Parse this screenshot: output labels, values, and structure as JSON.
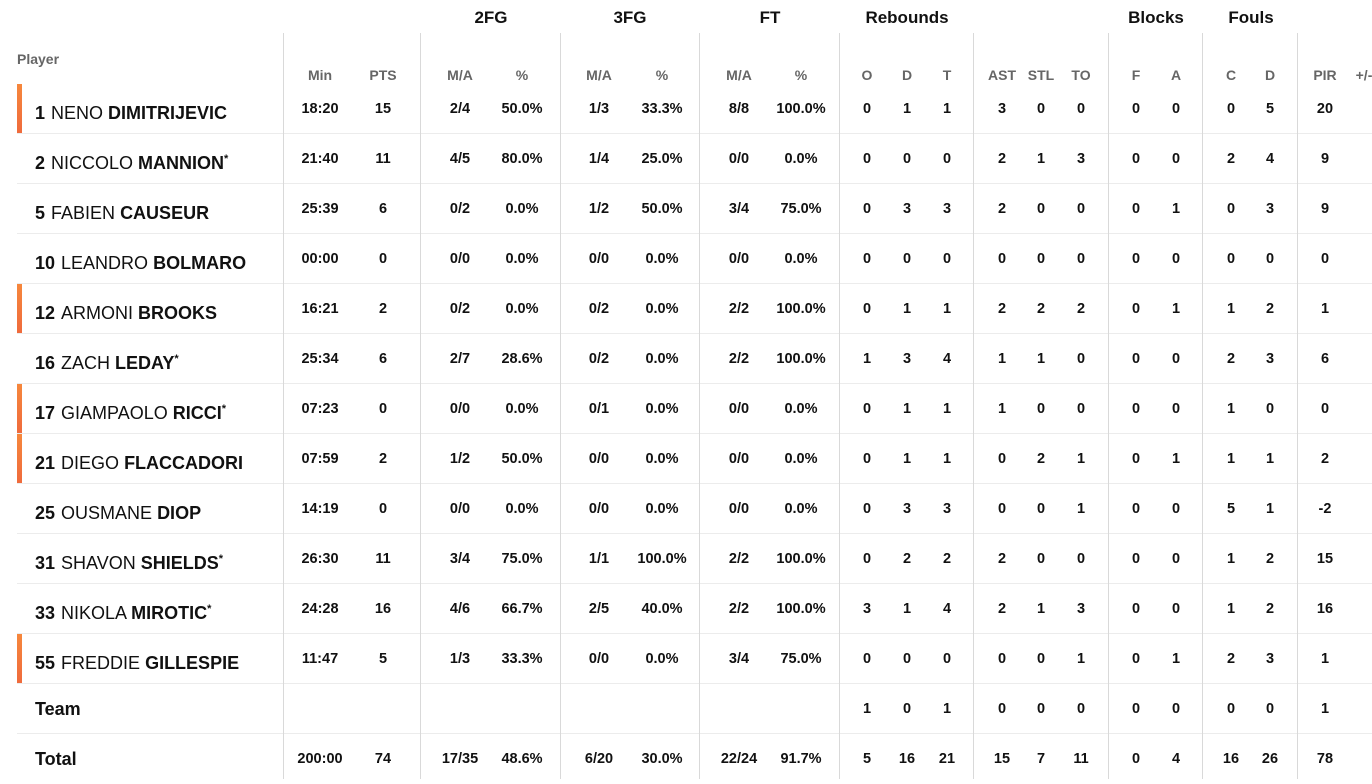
{
  "groups": {
    "fg2": "2FG",
    "fg3": "3FG",
    "ft": "FT",
    "reb": "Rebounds",
    "blk": "Blocks",
    "fouls": "Fouls"
  },
  "columns": {
    "player": "Player",
    "min": "Min",
    "pts": "PTS",
    "fg2_ma": "M/A",
    "fg2_pct": "%",
    "fg3_ma": "M/A",
    "fg3_pct": "%",
    "ft_ma": "M/A",
    "ft_pct": "%",
    "reb_o": "O",
    "reb_d": "D",
    "reb_t": "T",
    "ast": "AST",
    "stl": "STL",
    "to": "TO",
    "blk_f": "F",
    "blk_a": "A",
    "foul_c": "C",
    "foul_d": "D",
    "pir": "PIR",
    "plusminus": "+/-"
  },
  "highlight_color": "#f37b3c",
  "players": [
    {
      "number": "1",
      "first": "NENO",
      "last": "DIMITRIJEVIC",
      "starter": "",
      "sub": true,
      "min": "18:20",
      "pts": "15",
      "fg2_ma": "2/4",
      "fg2_pct": "50.0%",
      "fg3_ma": "1/3",
      "fg3_pct": "33.3%",
      "ft_ma": "8/8",
      "ft_pct": "100.0%",
      "reb_o": "0",
      "reb_d": "1",
      "reb_t": "1",
      "ast": "3",
      "stl": "0",
      "to": "0",
      "blk_f": "0",
      "blk_a": "0",
      "foul_c": "0",
      "foul_d": "5",
      "pir": "20"
    },
    {
      "number": "2",
      "first": "NICCOLO",
      "last": "MANNION",
      "starter": "*",
      "sub": false,
      "min": "21:40",
      "pts": "11",
      "fg2_ma": "4/5",
      "fg2_pct": "80.0%",
      "fg3_ma": "1/4",
      "fg3_pct": "25.0%",
      "ft_ma": "0/0",
      "ft_pct": "0.0%",
      "reb_o": "0",
      "reb_d": "0",
      "reb_t": "0",
      "ast": "2",
      "stl": "1",
      "to": "3",
      "blk_f": "0",
      "blk_a": "0",
      "foul_c": "2",
      "foul_d": "4",
      "pir": "9"
    },
    {
      "number": "5",
      "first": "FABIEN",
      "last": "CAUSEUR",
      "starter": "",
      "sub": false,
      "min": "25:39",
      "pts": "6",
      "fg2_ma": "0/2",
      "fg2_pct": "0.0%",
      "fg3_ma": "1/2",
      "fg3_pct": "50.0%",
      "ft_ma": "3/4",
      "ft_pct": "75.0%",
      "reb_o": "0",
      "reb_d": "3",
      "reb_t": "3",
      "ast": "2",
      "stl": "0",
      "to": "0",
      "blk_f": "0",
      "blk_a": "1",
      "foul_c": "0",
      "foul_d": "3",
      "pir": "9"
    },
    {
      "number": "10",
      "first": "LEANDRO",
      "last": "BOLMARO",
      "starter": "",
      "sub": false,
      "min": "00:00",
      "pts": "0",
      "fg2_ma": "0/0",
      "fg2_pct": "0.0%",
      "fg3_ma": "0/0",
      "fg3_pct": "0.0%",
      "ft_ma": "0/0",
      "ft_pct": "0.0%",
      "reb_o": "0",
      "reb_d": "0",
      "reb_t": "0",
      "ast": "0",
      "stl": "0",
      "to": "0",
      "blk_f": "0",
      "blk_a": "0",
      "foul_c": "0",
      "foul_d": "0",
      "pir": "0"
    },
    {
      "number": "12",
      "first": "ARMONI",
      "last": "BROOKS",
      "starter": "",
      "sub": true,
      "min": "16:21",
      "pts": "2",
      "fg2_ma": "0/2",
      "fg2_pct": "0.0%",
      "fg3_ma": "0/2",
      "fg3_pct": "0.0%",
      "ft_ma": "2/2",
      "ft_pct": "100.0%",
      "reb_o": "0",
      "reb_d": "1",
      "reb_t": "1",
      "ast": "2",
      "stl": "2",
      "to": "2",
      "blk_f": "0",
      "blk_a": "1",
      "foul_c": "1",
      "foul_d": "2",
      "pir": "1"
    },
    {
      "number": "16",
      "first": "ZACH",
      "last": "LEDAY",
      "starter": "*",
      "sub": false,
      "min": "25:34",
      "pts": "6",
      "fg2_ma": "2/7",
      "fg2_pct": "28.6%",
      "fg3_ma": "0/2",
      "fg3_pct": "0.0%",
      "ft_ma": "2/2",
      "ft_pct": "100.0%",
      "reb_o": "1",
      "reb_d": "3",
      "reb_t": "4",
      "ast": "1",
      "stl": "1",
      "to": "0",
      "blk_f": "0",
      "blk_a": "0",
      "foul_c": "2",
      "foul_d": "3",
      "pir": "6"
    },
    {
      "number": "17",
      "first": "GIAMPAOLO",
      "last": "RICCI",
      "starter": "*",
      "sub": true,
      "min": "07:23",
      "pts": "0",
      "fg2_ma": "0/0",
      "fg2_pct": "0.0%",
      "fg3_ma": "0/1",
      "fg3_pct": "0.0%",
      "ft_ma": "0/0",
      "ft_pct": "0.0%",
      "reb_o": "0",
      "reb_d": "1",
      "reb_t": "1",
      "ast": "1",
      "stl": "0",
      "to": "0",
      "blk_f": "0",
      "blk_a": "0",
      "foul_c": "1",
      "foul_d": "0",
      "pir": "0"
    },
    {
      "number": "21",
      "first": "DIEGO",
      "last": "FLACCADORI",
      "starter": "",
      "sub": true,
      "min": "07:59",
      "pts": "2",
      "fg2_ma": "1/2",
      "fg2_pct": "50.0%",
      "fg3_ma": "0/0",
      "fg3_pct": "0.0%",
      "ft_ma": "0/0",
      "ft_pct": "0.0%",
      "reb_o": "0",
      "reb_d": "1",
      "reb_t": "1",
      "ast": "0",
      "stl": "2",
      "to": "1",
      "blk_f": "0",
      "blk_a": "1",
      "foul_c": "1",
      "foul_d": "1",
      "pir": "2"
    },
    {
      "number": "25",
      "first": "OUSMANE",
      "last": "DIOP",
      "starter": "",
      "sub": false,
      "min": "14:19",
      "pts": "0",
      "fg2_ma": "0/0",
      "fg2_pct": "0.0%",
      "fg3_ma": "0/0",
      "fg3_pct": "0.0%",
      "ft_ma": "0/0",
      "ft_pct": "0.0%",
      "reb_o": "0",
      "reb_d": "3",
      "reb_t": "3",
      "ast": "0",
      "stl": "0",
      "to": "1",
      "blk_f": "0",
      "blk_a": "0",
      "foul_c": "5",
      "foul_d": "1",
      "pir": "-2"
    },
    {
      "number": "31",
      "first": "SHAVON",
      "last": "SHIELDS",
      "starter": "*",
      "sub": false,
      "min": "26:30",
      "pts": "11",
      "fg2_ma": "3/4",
      "fg2_pct": "75.0%",
      "fg3_ma": "1/1",
      "fg3_pct": "100.0%",
      "ft_ma": "2/2",
      "ft_pct": "100.0%",
      "reb_o": "0",
      "reb_d": "2",
      "reb_t": "2",
      "ast": "2",
      "stl": "0",
      "to": "0",
      "blk_f": "0",
      "blk_a": "0",
      "foul_c": "1",
      "foul_d": "2",
      "pir": "15"
    },
    {
      "number": "33",
      "first": "NIKOLA",
      "last": "MIROTIC",
      "starter": "*",
      "sub": false,
      "min": "24:28",
      "pts": "16",
      "fg2_ma": "4/6",
      "fg2_pct": "66.7%",
      "fg3_ma": "2/5",
      "fg3_pct": "40.0%",
      "ft_ma": "2/2",
      "ft_pct": "100.0%",
      "reb_o": "3",
      "reb_d": "1",
      "reb_t": "4",
      "ast": "2",
      "stl": "1",
      "to": "3",
      "blk_f": "0",
      "blk_a": "0",
      "foul_c": "1",
      "foul_d": "2",
      "pir": "16"
    },
    {
      "number": "55",
      "first": "FREDDIE",
      "last": "GILLESPIE",
      "starter": "",
      "sub": true,
      "min": "11:47",
      "pts": "5",
      "fg2_ma": "1/3",
      "fg2_pct": "33.3%",
      "fg3_ma": "0/0",
      "fg3_pct": "0.0%",
      "ft_ma": "3/4",
      "ft_pct": "75.0%",
      "reb_o": "0",
      "reb_d": "0",
      "reb_t": "0",
      "ast": "0",
      "stl": "0",
      "to": "1",
      "blk_f": "0",
      "blk_a": "1",
      "foul_c": "2",
      "foul_d": "3",
      "pir": "1"
    }
  ],
  "team": {
    "label": "Team",
    "min": "",
    "pts": "",
    "fg2_ma": "",
    "fg2_pct": "",
    "fg3_ma": "",
    "fg3_pct": "",
    "ft_ma": "",
    "ft_pct": "",
    "reb_o": "1",
    "reb_d": "0",
    "reb_t": "1",
    "ast": "0",
    "stl": "0",
    "to": "0",
    "blk_f": "0",
    "blk_a": "0",
    "foul_c": "0",
    "foul_d": "0",
    "pir": "1"
  },
  "total": {
    "label": "Total",
    "min": "200:00",
    "pts": "74",
    "fg2_ma": "17/35",
    "fg2_pct": "48.6%",
    "fg3_ma": "6/20",
    "fg3_pct": "30.0%",
    "ft_ma": "22/24",
    "ft_pct": "91.7%",
    "reb_o": "5",
    "reb_d": "16",
    "reb_t": "21",
    "ast": "15",
    "stl": "7",
    "to": "11",
    "blk_f": "0",
    "blk_a": "4",
    "foul_c": "16",
    "foul_d": "26",
    "pir": "78"
  }
}
